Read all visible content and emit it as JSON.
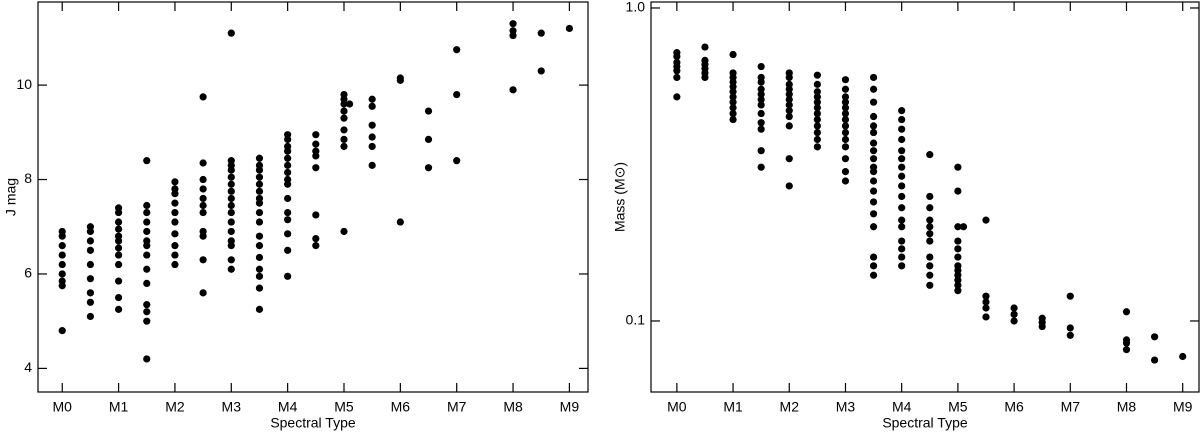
{
  "chart_data": [
    {
      "type": "scatter",
      "xlabel": "Spectral Type",
      "ylabel": "J mag",
      "color": "#000000",
      "log_y": false,
      "xlim": [
        -0.43,
        9.33
      ],
      "ylim": [
        3.5,
        11.76
      ],
      "xticks": [
        {
          "value": 0,
          "label": "M0"
        },
        {
          "value": 1,
          "label": "M1"
        },
        {
          "value": 2,
          "label": "M2"
        },
        {
          "value": 3,
          "label": "M3"
        },
        {
          "value": 4,
          "label": "M4"
        },
        {
          "value": 5,
          "label": "M5"
        },
        {
          "value": 6,
          "label": "M6"
        },
        {
          "value": 7,
          "label": "M7"
        },
        {
          "value": 8,
          "label": "M8"
        },
        {
          "value": 9,
          "label": "M9"
        }
      ],
      "yticks": [
        4,
        6,
        8,
        10
      ],
      "x": [
        0,
        0,
        0,
        0,
        0,
        0,
        0,
        0,
        0,
        0.5,
        0.5,
        0.5,
        0.5,
        0.5,
        0.5,
        0.5,
        0.5,
        0.5,
        1,
        1,
        1,
        1,
        1,
        1,
        1,
        1,
        1,
        1,
        1,
        1,
        1.5,
        1.5,
        1.5,
        1.5,
        1.5,
        1.5,
        1.5,
        1.5,
        1.5,
        1.5,
        1.5,
        1.5,
        1.5,
        1.5,
        2,
        2,
        2,
        2,
        2,
        2,
        2,
        2,
        2,
        2,
        2.5,
        2.5,
        2.5,
        2.5,
        2.5,
        2.5,
        2.5,
        2.5,
        2.5,
        2.5,
        2.5,
        3,
        3,
        3,
        3,
        3,
        3,
        3,
        3,
        3,
        3,
        3,
        3,
        3,
        3,
        3,
        3,
        3.5,
        3.5,
        3.5,
        3.5,
        3.5,
        3.5,
        3.5,
        3.5,
        3.5,
        3.5,
        3.5,
        3.5,
        3.5,
        3.5,
        3.5,
        3.5,
        3.5,
        4,
        4,
        4,
        4,
        4,
        4,
        4,
        4,
        4,
        4,
        4,
        4,
        4,
        4,
        4,
        4.5,
        4.5,
        4.5,
        4.5,
        4.5,
        4.5,
        4.5,
        4.5,
        5,
        5,
        5,
        5,
        5,
        5,
        5,
        5,
        5,
        5.1,
        5.5,
        5.5,
        5.5,
        5.5,
        5.5,
        5.5,
        6,
        6,
        6,
        6.5,
        6.5,
        6.5,
        7,
        7,
        7,
        8,
        8,
        8,
        8,
        8.5,
        8.5,
        9
      ],
      "values": [
        6.9,
        6.8,
        6.6,
        6.4,
        6.2,
        6.0,
        5.85,
        5.75,
        4.8,
        7.0,
        6.9,
        6.7,
        6.5,
        6.2,
        5.9,
        5.6,
        5.4,
        5.1,
        7.4,
        7.3,
        7.1,
        6.95,
        6.8,
        6.7,
        6.55,
        6.4,
        6.2,
        5.85,
        5.5,
        5.25,
        8.4,
        7.45,
        7.3,
        7.1,
        6.9,
        6.7,
        6.6,
        6.4,
        6.1,
        5.8,
        5.35,
        5.2,
        5.0,
        4.2,
        7.95,
        7.8,
        7.7,
        7.5,
        7.3,
        7.1,
        6.85,
        6.6,
        6.4,
        6.2,
        9.75,
        8.35,
        8.0,
        7.8,
        7.6,
        7.45,
        7.3,
        6.9,
        6.8,
        6.3,
        5.6,
        11.1,
        8.4,
        8.3,
        8.2,
        8.05,
        7.9,
        7.75,
        7.6,
        7.45,
        7.3,
        7.1,
        6.9,
        6.7,
        6.6,
        6.3,
        6.1,
        8.45,
        8.3,
        8.2,
        8.05,
        7.9,
        7.75,
        7.6,
        7.5,
        7.3,
        7.1,
        6.8,
        6.6,
        6.35,
        6.1,
        5.95,
        5.7,
        5.25,
        8.95,
        8.85,
        8.7,
        8.6,
        8.45,
        8.3,
        8.15,
        8.0,
        7.9,
        7.6,
        7.3,
        7.15,
        6.85,
        6.5,
        5.95,
        8.95,
        8.75,
        8.6,
        8.5,
        8.25,
        7.25,
        6.75,
        6.6,
        9.8,
        9.7,
        9.6,
        9.45,
        9.3,
        9.05,
        8.85,
        8.7,
        6.9,
        9.6,
        9.7,
        9.55,
        9.15,
        8.9,
        8.7,
        8.3,
        10.15,
        10.1,
        7.1,
        9.45,
        8.85,
        8.25,
        10.75,
        9.8,
        8.4,
        11.3,
        11.15,
        11.05,
        9.9,
        11.1,
        10.3,
        11.2
      ]
    },
    {
      "type": "scatter",
      "xlabel": "Spectral Type",
      "ylabel": "Mass (M⊙)",
      "color": "#000000",
      "log_y": true,
      "xlim": [
        -0.46,
        9.29
      ],
      "ylim": [
        0.0593,
        1.045
      ],
      "xticks": [
        {
          "value": 0,
          "label": "M0"
        },
        {
          "value": 1,
          "label": "M1"
        },
        {
          "value": 2,
          "label": "M2"
        },
        {
          "value": 3,
          "label": "M3"
        },
        {
          "value": 4,
          "label": "M4"
        },
        {
          "value": 5,
          "label": "M5"
        },
        {
          "value": 6,
          "label": "M6"
        },
        {
          "value": 7,
          "label": "M7"
        },
        {
          "value": 8,
          "label": "M8"
        },
        {
          "value": 9,
          "label": "M9"
        }
      ],
      "yticks": [
        0.1,
        {
          "value": 1,
          "label": "1.0"
        }
      ],
      "x": [
        0,
        0,
        0,
        0,
        0,
        0,
        0,
        0.5,
        0.5,
        0.5,
        0.5,
        0.5,
        0.5,
        1,
        1,
        1,
        1,
        1,
        1,
        1,
        1,
        1,
        1,
        1,
        1.5,
        1.5,
        1.5,
        1.5,
        1.5,
        1.5,
        1.5,
        1.5,
        1.5,
        1.5,
        1.5,
        1.5,
        2,
        2,
        2,
        2,
        2,
        2,
        2,
        2,
        2,
        2,
        2,
        2,
        2.5,
        2.5,
        2.5,
        2.5,
        2.5,
        2.5,
        2.5,
        2.5,
        2.5,
        2.5,
        2.5,
        2.5,
        3,
        3,
        3,
        3,
        3,
        3,
        3,
        3,
        3,
        3,
        3,
        3,
        3,
        3,
        3.5,
        3.5,
        3.5,
        3.5,
        3.5,
        3.5,
        3.5,
        3.5,
        3.5,
        3.5,
        3.5,
        3.5,
        3.5,
        3.5,
        3.5,
        3.5,
        3.5,
        3.5,
        3.5,
        4,
        4,
        4,
        4,
        4,
        4,
        4,
        4,
        4,
        4,
        4,
        4,
        4,
        4,
        4,
        4,
        4,
        4.5,
        4.5,
        4.5,
        4.5,
        4.5,
        4.5,
        4.5,
        4.5,
        4.5,
        4.5,
        4.5,
        5,
        5,
        5,
        5,
        5,
        5,
        5,
        5,
        5,
        5,
        5,
        5,
        5.1,
        5.5,
        5.5,
        5.5,
        5.5,
        5.5,
        6,
        6,
        6,
        6.5,
        6.5,
        6.5,
        7,
        7,
        7,
        8,
        8,
        8,
        8,
        8.5,
        8.5,
        9
      ],
      "values": [
        0.72,
        0.7,
        0.67,
        0.65,
        0.63,
        0.6,
        0.52,
        0.75,
        0.68,
        0.66,
        0.64,
        0.62,
        0.6,
        0.71,
        0.62,
        0.6,
        0.58,
        0.56,
        0.54,
        0.52,
        0.5,
        0.48,
        0.46,
        0.44,
        0.65,
        0.6,
        0.58,
        0.55,
        0.53,
        0.51,
        0.49,
        0.46,
        0.43,
        0.41,
        0.35,
        0.31,
        0.62,
        0.6,
        0.57,
        0.55,
        0.53,
        0.51,
        0.49,
        0.47,
        0.45,
        0.42,
        0.33,
        0.27,
        0.61,
        0.57,
        0.54,
        0.52,
        0.5,
        0.48,
        0.46,
        0.44,
        0.42,
        0.4,
        0.38,
        0.36,
        0.59,
        0.55,
        0.52,
        0.5,
        0.48,
        0.46,
        0.44,
        0.42,
        0.4,
        0.38,
        0.36,
        0.33,
        0.3,
        0.28,
        0.6,
        0.55,
        0.5,
        0.45,
        0.42,
        0.4,
        0.37,
        0.35,
        0.33,
        0.31,
        0.3,
        0.28,
        0.26,
        0.24,
        0.22,
        0.2,
        0.16,
        0.15,
        0.14,
        0.47,
        0.44,
        0.41,
        0.38,
        0.35,
        0.33,
        0.31,
        0.29,
        0.27,
        0.25,
        0.23,
        0.21,
        0.2,
        0.18,
        0.17,
        0.16,
        0.15,
        0.34,
        0.25,
        0.23,
        0.21,
        0.2,
        0.19,
        0.18,
        0.16,
        0.15,
        0.14,
        0.13,
        0.31,
        0.26,
        0.2,
        0.18,
        0.17,
        0.16,
        0.15,
        0.145,
        0.14,
        0.135,
        0.13,
        0.125,
        0.2,
        0.21,
        0.12,
        0.115,
        0.11,
        0.103,
        0.11,
        0.105,
        0.1,
        0.102,
        0.099,
        0.096,
        0.12,
        0.095,
        0.09,
        0.107,
        0.087,
        0.085,
        0.081,
        0.089,
        0.075,
        0.077
      ]
    }
  ]
}
